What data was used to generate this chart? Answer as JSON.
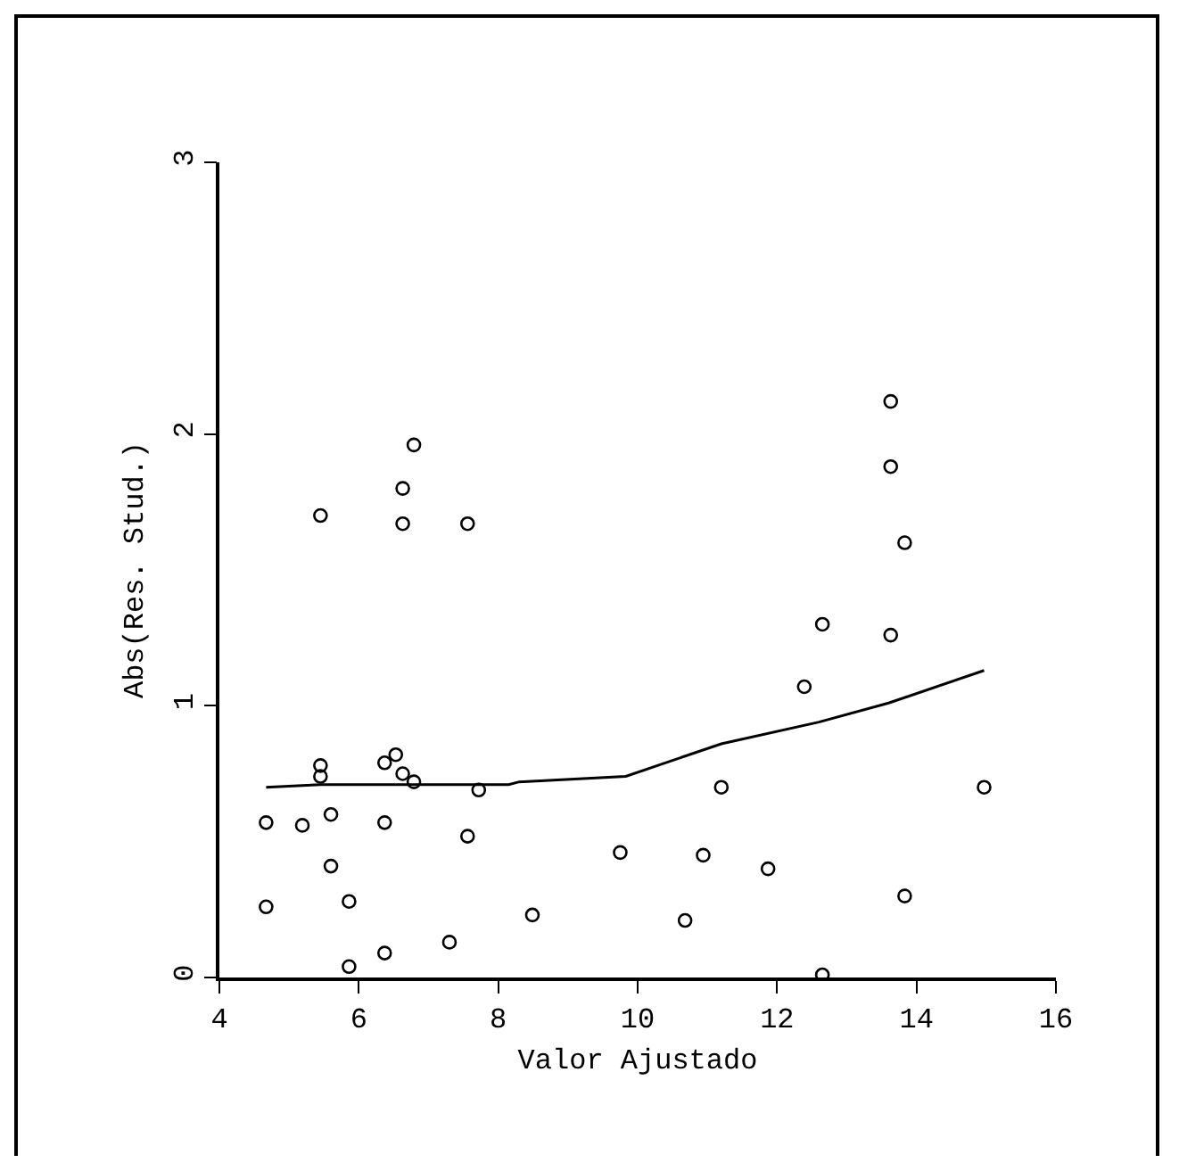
{
  "chart_data": {
    "type": "scatter",
    "xlabel": "Valor Ajustado",
    "ylabel": "Abs(Res. Stud.)",
    "xlim": [
      4,
      16
    ],
    "xticks": [
      4,
      6,
      8,
      10,
      12,
      14,
      16
    ],
    "ylim": [
      0,
      3
    ],
    "yticks": [
      0,
      1,
      2,
      3
    ],
    "grid": false,
    "legend": false,
    "series": [
      {
        "marker": "circle",
        "color": "#000000",
        "x": [
          4.67,
          4.67,
          5.19,
          5.45,
          5.45,
          5.45,
          5.6,
          5.6,
          5.86,
          5.86,
          6.37,
          6.37,
          6.37,
          6.53,
          6.63,
          6.63,
          6.63,
          6.79,
          6.79,
          7.3,
          7.56,
          7.56,
          7.72,
          8.49,
          9.75,
          10.68,
          10.94,
          11.2,
          11.87,
          12.39,
          12.65,
          12.65,
          13.63,
          13.63,
          13.63,
          13.83,
          13.83,
          14.97
        ],
        "values": [
          0.26,
          0.57,
          0.56,
          0.78,
          0.74,
          1.7,
          0.41,
          0.6,
          0.28,
          0.04,
          0.57,
          0.09,
          0.79,
          0.82,
          0.75,
          1.67,
          1.8,
          0.72,
          1.96,
          0.13,
          0.52,
          1.67,
          0.69,
          0.23,
          0.46,
          0.21,
          0.45,
          0.7,
          0.4,
          1.07,
          1.3,
          0.01,
          2.12,
          1.88,
          1.26,
          1.6,
          0.3,
          0.7
        ]
      },
      {
        "type": "line",
        "marker": "none",
        "color": "#000000",
        "line_style": "solid",
        "x": [
          4.67,
          5.45,
          8.15,
          8.3,
          9.83,
          11.2,
          12.6,
          13.6,
          14.97
        ],
        "values": [
          0.7,
          0.71,
          0.71,
          0.72,
          0.74,
          0.86,
          0.94,
          1.01,
          1.13
        ]
      }
    ]
  }
}
